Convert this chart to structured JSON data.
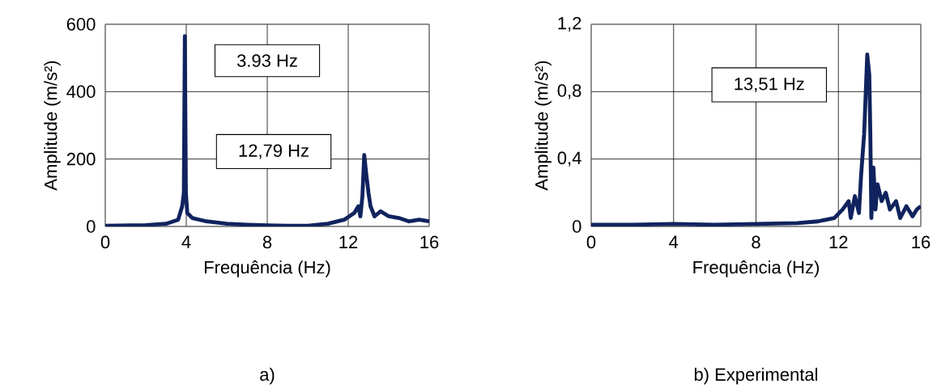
{
  "chart_data": [
    {
      "type": "line",
      "title": "a)",
      "xlabel": "Frequência (Hz)",
      "ylabel": "Amplitude (m/s²)",
      "xlim": [
        0,
        16
      ],
      "ylim": [
        0,
        600
      ],
      "xticks": [
        0,
        4,
        8,
        12,
        16
      ],
      "yticks": [
        0,
        200,
        400,
        600
      ],
      "grid": true,
      "marker": "none",
      "line_style": "solid",
      "annotations": [
        "3.93 Hz",
        "12,79 Hz"
      ],
      "series": [
        {
          "color": "#10235e",
          "x": [
            0,
            2,
            3,
            3.6,
            3.8,
            3.88,
            3.93,
            3.98,
            4.05,
            4.3,
            5,
            6,
            7,
            8,
            9,
            10,
            11,
            11.8,
            12.3,
            12.5,
            12.6,
            12.7,
            12.79,
            12.9,
            13.0,
            13.1,
            13.3,
            13.6,
            14,
            14.5,
            15,
            15.5,
            16
          ],
          "values": [
            2,
            4,
            8,
            20,
            60,
            100,
            565,
            100,
            40,
            25,
            15,
            8,
            5,
            3,
            2,
            2,
            8,
            20,
            40,
            60,
            30,
            90,
            212,
            150,
            100,
            60,
            30,
            45,
            30,
            25,
            15,
            20,
            15
          ]
        }
      ]
    },
    {
      "type": "line",
      "title": "b)  Experimental",
      "xlabel": "Frequência (Hz)",
      "ylabel": "Amplitude (m/s²)",
      "xlim": [
        0,
        16
      ],
      "ylim": [
        0,
        1.2
      ],
      "xticks": [
        0,
        4,
        8,
        12,
        16
      ],
      "yticks": [
        0,
        {
          "value": 0.4,
          "label": "0,4"
        },
        {
          "value": 0.8,
          "label": "0,8"
        },
        {
          "value": 1.2,
          "label": "1,2"
        }
      ],
      "grid": true,
      "marker": "none",
      "line_style": "solid",
      "annotations": [
        "13,51 Hz"
      ],
      "series": [
        {
          "color": "#10235e",
          "x": [
            0,
            2,
            4,
            6,
            8,
            10,
            11,
            11.8,
            12.2,
            12.5,
            12.6,
            12.8,
            13.0,
            13.1,
            13.25,
            13.4,
            13.5,
            13.55,
            13.6,
            13.7,
            13.8,
            13.9,
            14.1,
            14.3,
            14.5,
            14.8,
            15,
            15.3,
            15.6,
            15.8,
            16
          ],
          "values": [
            0.01,
            0.01,
            0.015,
            0.01,
            0.015,
            0.02,
            0.03,
            0.05,
            0.1,
            0.15,
            0.05,
            0.18,
            0.08,
            0.3,
            0.55,
            1.02,
            0.9,
            0.55,
            0.05,
            0.35,
            0.1,
            0.25,
            0.15,
            0.2,
            0.1,
            0.15,
            0.05,
            0.12,
            0.06,
            0.1,
            0.12
          ]
        }
      ]
    }
  ]
}
